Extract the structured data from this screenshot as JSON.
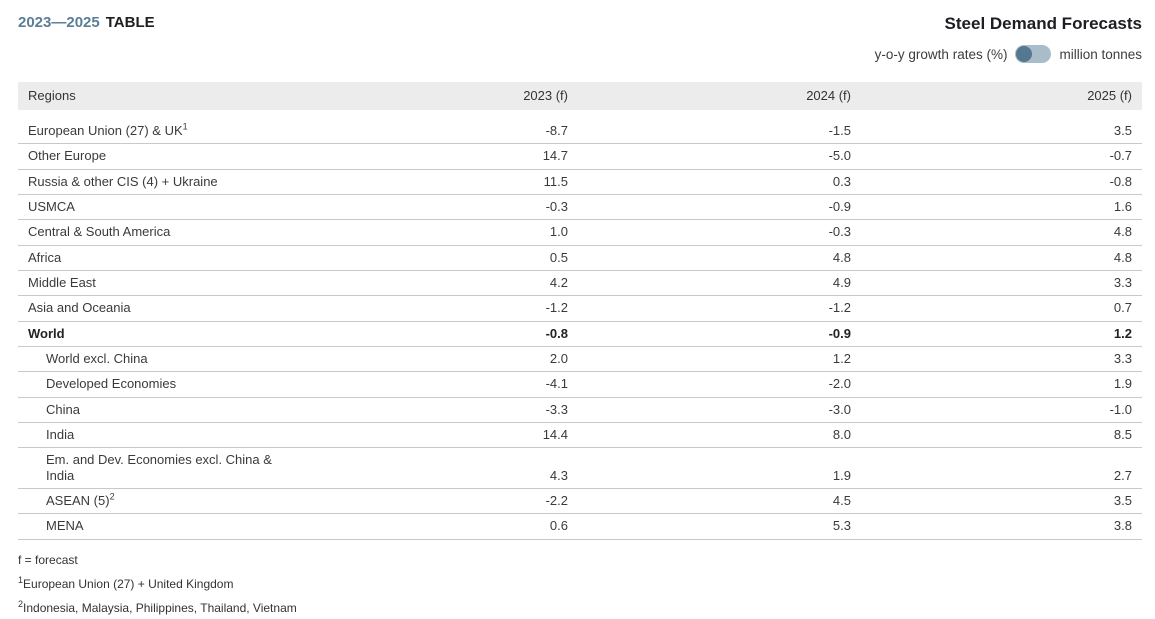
{
  "header": {
    "period": "2023—2025",
    "table_label": "TABLE",
    "title": "Steel Demand Forecasts"
  },
  "unit_toggle": {
    "left_label": "y-o-y growth rates (%)",
    "right_label": "million tonnes",
    "selected": "y-o-y growth rates (%)",
    "knob_position": "left"
  },
  "colors": {
    "accent_period": "#5b7e97",
    "toggle_track": "#a9bcca",
    "toggle_knob": "#54788f",
    "header_row_bg": "#ececec",
    "row_border": "#c9c9c9"
  },
  "chart_data": {
    "type": "table",
    "title": "Steel Demand Forecasts",
    "unit": "y-o-y growth rates (%)",
    "columns": [
      "Regions",
      "2023 (f)",
      "2024 (f)",
      "2025 (f)"
    ],
    "rows": [
      {
        "region": "European Union (27) & UK",
        "footnote_ref": "1",
        "indent": false,
        "bold": false,
        "values": [
          -8.7,
          -1.5,
          3.5
        ]
      },
      {
        "region": "Other Europe",
        "indent": false,
        "bold": false,
        "values": [
          14.7,
          -5.0,
          -0.7
        ]
      },
      {
        "region": "Russia & other CIS (4) + Ukraine",
        "indent": false,
        "bold": false,
        "values": [
          11.5,
          0.3,
          -0.8
        ]
      },
      {
        "region": "USMCA",
        "indent": false,
        "bold": false,
        "values": [
          -0.3,
          -0.9,
          1.6
        ]
      },
      {
        "region": "Central & South America",
        "indent": false,
        "bold": false,
        "values": [
          1.0,
          -0.3,
          4.8
        ]
      },
      {
        "region": "Africa",
        "indent": false,
        "bold": false,
        "values": [
          0.5,
          4.8,
          4.8
        ]
      },
      {
        "region": "Middle East",
        "indent": false,
        "bold": false,
        "values": [
          4.2,
          4.9,
          3.3
        ]
      },
      {
        "region": "Asia and Oceania",
        "indent": false,
        "bold": false,
        "values": [
          -1.2,
          -1.2,
          0.7
        ]
      },
      {
        "region": "World",
        "indent": false,
        "bold": true,
        "values": [
          -0.8,
          -0.9,
          1.2
        ]
      },
      {
        "region": "World excl. China",
        "indent": true,
        "bold": false,
        "values": [
          2.0,
          1.2,
          3.3
        ]
      },
      {
        "region": "Developed Economies",
        "indent": true,
        "bold": false,
        "values": [
          -4.1,
          -2.0,
          1.9
        ]
      },
      {
        "region": "China",
        "indent": true,
        "bold": false,
        "values": [
          -3.3,
          -3.0,
          -1.0
        ]
      },
      {
        "region": "India",
        "indent": true,
        "bold": false,
        "values": [
          14.4,
          8.0,
          8.5
        ]
      },
      {
        "region": "Em. and Dev. Economies excl. China & India",
        "indent": true,
        "bold": false,
        "values": [
          4.3,
          1.9,
          2.7
        ]
      },
      {
        "region": "ASEAN (5)",
        "footnote_ref": "2",
        "indent": true,
        "bold": false,
        "values": [
          -2.2,
          4.5,
          3.5
        ]
      },
      {
        "region": "MENA",
        "indent": true,
        "bold": false,
        "values": [
          0.6,
          5.3,
          3.8
        ]
      }
    ]
  },
  "footnotes": [
    {
      "sup": "",
      "text": "f = forecast"
    },
    {
      "sup": "1",
      "text": "European Union (27) + United Kingdom"
    },
    {
      "sup": "2",
      "text": "Indonesia, Malaysia, Philippines, Thailand, Vietnam"
    }
  ]
}
